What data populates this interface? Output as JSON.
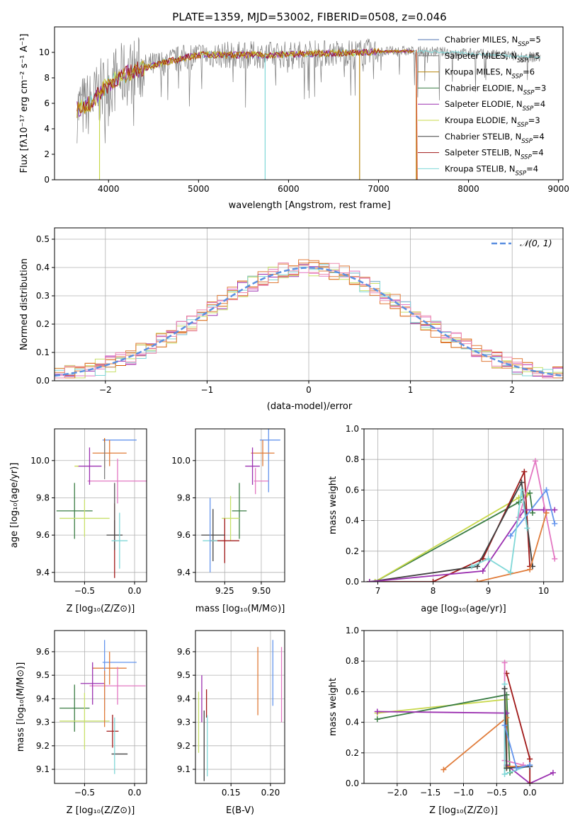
{
  "figure": {
    "title": "PLATE=1359, MJD=53002, FIBERID=0508, z=0.046"
  },
  "colors": {
    "CM": "#4c72b0",
    "SM": "#7f7f7f",
    "KM": "#b8860b",
    "CE": "#3a7d44",
    "SE": "#9b30b0",
    "KE": "#c8d84a",
    "CS": "#404040",
    "SS": "#a01818",
    "KS": "#7fd7d7",
    "gauss": "#5b8fe0"
  },
  "models": [
    {
      "id": "CM",
      "label": "Chabrier MILES, N",
      "n": "5"
    },
    {
      "id": "SM",
      "label": "Salpeter MILES, N",
      "n": "5"
    },
    {
      "id": "KM",
      "label": "Kroupa MILES, N",
      "n": "6"
    },
    {
      "id": "CE",
      "label": "Chabrier ELODIE, N",
      "n": "3"
    },
    {
      "id": "SE",
      "label": "Salpeter ELODIE, N",
      "n": "4"
    },
    {
      "id": "KE",
      "label": "Kroupa ELODIE, N",
      "n": "3"
    },
    {
      "id": "CS",
      "label": "Chabrier STELIB, N",
      "n": "4"
    },
    {
      "id": "SS",
      "label": "Salpeter STELIB, N",
      "n": "4"
    },
    {
      "id": "KS",
      "label": "Kroupa STELIB, N",
      "n": "4"
    }
  ],
  "chart_data": [
    {
      "id": "spectrum",
      "type": "line",
      "xlabel": "wavelength [Angstrom, rest frame]",
      "ylabel": "Flux [fλ10⁻¹⁷ erg cm⁻² s⁻¹ A⁻¹]",
      "xlim": [
        3400,
        9050
      ],
      "ylim": [
        0,
        12
      ],
      "xticks": [
        4000,
        5000,
        6000,
        7000,
        8000,
        9000
      ],
      "yticks": [
        0,
        2,
        4,
        6,
        8,
        10
      ],
      "grid": false,
      "legend": "top-right",
      "x_range_data": [
        3650,
        8800
      ],
      "continuum": [
        [
          3650,
          5.5
        ],
        [
          3800,
          6.0
        ],
        [
          3950,
          7.2
        ],
        [
          4100,
          8.0
        ],
        [
          4300,
          8.6
        ],
        [
          4500,
          9.0
        ],
        [
          4800,
          9.5
        ],
        [
          5000,
          9.8
        ],
        [
          5300,
          9.8
        ],
        [
          5800,
          9.8
        ],
        [
          6300,
          9.9
        ],
        [
          6800,
          10.0
        ],
        [
          7300,
          10.1
        ],
        [
          7800,
          10.0
        ],
        [
          8300,
          9.8
        ],
        [
          8800,
          9.6
        ]
      ],
      "series_ranges": [
        {
          "id": "SM",
          "range": [
            3650,
            8800
          ]
        },
        {
          "id": "KS",
          "range": [
            3650,
            8800
          ]
        },
        {
          "id": "KE",
          "range": [
            3650,
            7400
          ]
        },
        {
          "id": "SE",
          "range": [
            3650,
            7400
          ]
        },
        {
          "id": "SS",
          "range": [
            3650,
            7400
          ]
        },
        {
          "id": "KM",
          "range": [
            3650,
            7400
          ]
        }
      ],
      "drops": [
        {
          "x": 3900,
          "color_id": "KE"
        },
        {
          "x": 5740,
          "color_id": "KS"
        },
        {
          "x": 6790,
          "color_id": "KM"
        },
        {
          "x": 7420,
          "color_id": "KM"
        }
      ]
    },
    {
      "id": "residuals",
      "type": "line",
      "xlabel": "(data-model)/error",
      "ylabel": "Normed distribution",
      "xlim": [
        -2.5,
        2.5
      ],
      "ylim": [
        0,
        0.54
      ],
      "xticks": [
        -2,
        -1,
        0,
        1,
        2
      ],
      "yticks": [
        0.0,
        0.1,
        0.2,
        0.3,
        0.4,
        0.5
      ],
      "grid": true,
      "legend": "top-right",
      "legend_label": "𝒩(0, 1)",
      "bin_width": 0.1,
      "step_colors": [
        "#e07b39",
        "#d55e00",
        "#9b30b0",
        "#e377c2",
        "#c8e06a",
        "#7fd7d7",
        "#e07b39",
        "#ec8bb0"
      ]
    },
    {
      "id": "age_vs_Z",
      "type": "scatter",
      "xlabel": "Z [log₁₀(Z/Z⊙)]",
      "ylabel": "age  [log₁₀(age/yr)]",
      "xlim": [
        -0.8,
        0.12
      ],
      "ylim": [
        9.35,
        10.17
      ],
      "xticks": [
        -0.5,
        0.0
      ],
      "yticks": [
        9.4,
        9.6,
        9.8,
        10.0
      ],
      "grid": true,
      "points": [
        {
          "c": "#6495ed",
          "x": -0.15,
          "xerr": 0.17,
          "y": 10.11,
          "yerr": 0.0
        },
        {
          "c": "#e07b39",
          "x": -0.25,
          "xerr": 0.17,
          "y": 10.04,
          "yerr": 0.07
        },
        {
          "c": "#e377c2",
          "x": -0.17,
          "xerr": 0.3,
          "y": 9.89,
          "yerr": 0.12
        },
        {
          "c": "#9b30b0",
          "x": -0.45,
          "xerr": 0.12,
          "y": 9.97,
          "yerr": 0.1
        },
        {
          "c": "#c8d84a",
          "x": -0.58,
          "xerr": 0.02,
          "y": 9.97,
          "yerr": 0.0
        },
        {
          "c": "#d55e00",
          "x": -0.3,
          "xerr": 0.0,
          "y": 10.04,
          "yerr": 0.08
        },
        {
          "c": "#3a7d44",
          "x": -0.6,
          "xerr": 0.18,
          "y": 9.73,
          "yerr": 0.15
        },
        {
          "c": "#c8e06a",
          "x": -0.5,
          "xerr": 0.25,
          "y": 9.69,
          "yerr": 0.1
        },
        {
          "c": "#7f7f7f",
          "x": -0.3,
          "xerr": 0.0,
          "y": 10.0,
          "yerr": 0.1
        },
        {
          "c": "#a01818",
          "x": -0.2,
          "xerr": 0.0,
          "y": 9.57,
          "yerr": 0.2
        },
        {
          "c": "#404040",
          "x": -0.2,
          "xerr": 0.08,
          "y": 9.6,
          "yerr": 0.08
        },
        {
          "c": "#7fd7d7",
          "x": -0.15,
          "xerr": 0.08,
          "y": 9.57,
          "yerr": 0.15
        },
        {
          "c": "#555555",
          "x": -0.2,
          "xerr": 0.0,
          "y": 9.78,
          "yerr": 0.1
        }
      ]
    },
    {
      "id": "age_vs_mass",
      "type": "scatter",
      "xlabel": "mass [log₁₀(M/M⊙)]",
      "ylabel": "",
      "xlim": [
        9.05,
        9.66
      ],
      "ylim": [
        9.35,
        10.17
      ],
      "xticks": [
        9.25,
        9.5
      ],
      "yticks": [
        9.4,
        9.6,
        9.8,
        10.0
      ],
      "grid": true,
      "points": [
        {
          "c": "#6495ed",
          "x": 9.56,
          "xerr": 0.07,
          "y": 10.11,
          "yerr": 0.0
        },
        {
          "c": "#6495ed",
          "x": 9.55,
          "xerr": 0.0,
          "y": 10.0,
          "yerr": 0.17
        },
        {
          "c": "#e07b39",
          "x": 9.51,
          "xerr": 0.08,
          "y": 10.04,
          "yerr": 0.07
        },
        {
          "c": "#e377c2",
          "x": 9.46,
          "xerr": 0.0,
          "y": 9.89,
          "yerr": 0.07
        },
        {
          "c": "#e377c2",
          "x": 9.5,
          "xerr": 0.05,
          "y": 9.89,
          "yerr": 0.0
        },
        {
          "c": "#9b30b0",
          "x": 9.44,
          "xerr": 0.05,
          "y": 9.97,
          "yerr": 0.1
        },
        {
          "c": "#3a7d44",
          "x": 9.35,
          "xerr": 0.05,
          "y": 9.73,
          "yerr": 0.15
        },
        {
          "c": "#c8e06a",
          "x": 9.29,
          "xerr": 0.06,
          "y": 9.69,
          "yerr": 0.12
        },
        {
          "c": "#a01818",
          "x": 9.25,
          "xerr": 0.1,
          "y": 9.57,
          "yerr": 0.12
        },
        {
          "c": "#404040",
          "x": 9.17,
          "xerr": 0.08,
          "y": 9.6,
          "yerr": 0.14
        },
        {
          "c": "#7fd7d7",
          "x": 9.15,
          "xerr": 0.05,
          "y": 9.57,
          "yerr": 0.0
        },
        {
          "c": "#6495ed",
          "x": 9.15,
          "xerr": 0.0,
          "y": 9.6,
          "yerr": 0.2
        }
      ]
    },
    {
      "id": "mass_weight_vs_age",
      "type": "line",
      "xlabel": "age  [log₁₀(age/yr)]",
      "ylabel": "mass weight",
      "xlim": [
        6.75,
        10.35
      ],
      "ylim": [
        0,
        1.0
      ],
      "xticks": [
        7,
        8,
        9,
        10
      ],
      "yticks": [
        0.0,
        0.2,
        0.4,
        0.6,
        0.8,
        1.0
      ],
      "grid": true,
      "series": [
        {
          "c": "#3a7d44",
          "pts": [
            [
              6.95,
              0.0
            ],
            [
              9.55,
              0.52
            ],
            [
              9.75,
              0.58
            ],
            [
              9.8,
              0.45
            ]
          ]
        },
        {
          "c": "#c8d84a",
          "pts": [
            [
              6.95,
              0.0
            ],
            [
              9.55,
              0.55
            ],
            [
              9.7,
              0.57
            ]
          ]
        },
        {
          "c": "#a01818",
          "pts": [
            [
              6.85,
              0.0
            ],
            [
              8.0,
              0.0
            ],
            [
              8.9,
              0.15
            ],
            [
              9.65,
              0.72
            ],
            [
              9.75,
              0.1
            ]
          ]
        },
        {
          "c": "#404040",
          "pts": [
            [
              6.85,
              0.0
            ],
            [
              8.8,
              0.1
            ],
            [
              9.6,
              0.65
            ],
            [
              9.8,
              0.1
            ]
          ]
        },
        {
          "c": "#9b30b0",
          "pts": [
            [
              6.85,
              0.0
            ],
            [
              8.9,
              0.07
            ],
            [
              9.65,
              0.47
            ],
            [
              10.0,
              0.47
            ],
            [
              10.2,
              0.47
            ]
          ]
        },
        {
          "c": "#e377c2",
          "pts": [
            [
              9.55,
              0.42
            ],
            [
              9.85,
              0.79
            ],
            [
              10.2,
              0.15
            ]
          ]
        },
        {
          "c": "#6495ed",
          "pts": [
            [
              9.4,
              0.3
            ],
            [
              10.05,
              0.6
            ],
            [
              10.2,
              0.38
            ]
          ]
        },
        {
          "c": "#e07b39",
          "pts": [
            [
              8.8,
              0.0
            ],
            [
              9.75,
              0.08
            ],
            [
              10.05,
              0.45
            ]
          ]
        },
        {
          "c": "#7fd7d7",
          "pts": [
            [
              8.7,
              0.1
            ],
            [
              9.0,
              0.15
            ],
            [
              9.4,
              0.06
            ],
            [
              9.6,
              0.6
            ],
            [
              9.7,
              0.35
            ]
          ]
        }
      ]
    },
    {
      "id": "mass_vs_Z",
      "type": "scatter",
      "xlabel": "Z [log₁₀(Z/Z⊙)]",
      "ylabel": "mass [log₁₀(M/M⊙)]",
      "xlim": [
        -0.8,
        0.12
      ],
      "ylim": [
        9.04,
        9.69
      ],
      "xticks": [
        -0.5,
        0.0
      ],
      "yticks": [
        9.1,
        9.2,
        9.3,
        9.4,
        9.5,
        9.6
      ],
      "grid": true,
      "points": [
        {
          "c": "#6495ed",
          "x": -0.15,
          "xerr": 0.17,
          "y": 9.555,
          "yerr": 0.0
        },
        {
          "c": "#e07b39",
          "x": -0.25,
          "xerr": 0.17,
          "y": 9.53,
          "yerr": 0.07
        },
        {
          "c": "#e377c2",
          "x": -0.17,
          "xerr": 0.28,
          "y": 9.455,
          "yerr": 0.08
        },
        {
          "c": "#9b30b0",
          "x": -0.42,
          "xerr": 0.12,
          "y": 9.465,
          "yerr": 0.09
        },
        {
          "c": "#3a7d44",
          "x": -0.6,
          "xerr": 0.15,
          "y": 9.36,
          "yerr": 0.1
        },
        {
          "c": "#c8e06a",
          "x": -0.5,
          "xerr": 0.25,
          "y": 9.305,
          "yerr": 0.12
        },
        {
          "c": "#a01818",
          "x": -0.22,
          "xerr": 0.06,
          "y": 9.262,
          "yerr": 0.07
        },
        {
          "c": "#404040",
          "x": -0.15,
          "xerr": 0.08,
          "y": 9.165,
          "yerr": 0.0
        },
        {
          "c": "#7fd7d7",
          "x": -0.12,
          "xerr": 0.0,
          "y": 9.15,
          "yerr": 0.0
        },
        {
          "c": "#7fd7d7",
          "x": -0.2,
          "xerr": 0.0,
          "y": 9.2,
          "yerr": 0.12
        },
        {
          "c": "#6495ed",
          "x": -0.3,
          "xerr": 0.0,
          "y": 9.5,
          "yerr": 0.15
        },
        {
          "c": "#e07b39",
          "x": -0.3,
          "xerr": 0.0,
          "y": 9.4,
          "yerr": 0.12
        }
      ]
    },
    {
      "id": "mass_vs_EBV",
      "type": "scatter",
      "xlabel": "E(B-V)",
      "ylabel": "",
      "xlim": [
        0.105,
        0.218
      ],
      "ylim": [
        9.04,
        9.69
      ],
      "xticks": [
        0.15,
        0.2
      ],
      "yticks": [
        9.1,
        9.2,
        9.3,
        9.4,
        9.5,
        9.6
      ],
      "grid": true,
      "points": [
        {
          "c": "#c8e06a",
          "x": 0.109,
          "xerr": 0.0,
          "y": 9.3,
          "yerr": 0.13
        },
        {
          "c": "#9b30b0",
          "x": 0.113,
          "xerr": 0.0,
          "y": 9.4,
          "yerr": 0.1
        },
        {
          "c": "#404040",
          "x": 0.116,
          "xerr": 0.0,
          "y": 9.2,
          "yerr": 0.15
        },
        {
          "c": "#a01818",
          "x": 0.119,
          "xerr": 0.0,
          "y": 9.38,
          "yerr": 0.06
        },
        {
          "c": "#7fd7d7",
          "x": 0.12,
          "xerr": 0.0,
          "y": 9.2,
          "yerr": 0.13
        },
        {
          "c": "#e07b39",
          "x": 0.184,
          "xerr": 0.0,
          "y": 9.475,
          "yerr": 0.145
        },
        {
          "c": "#6495ed",
          "x": 0.203,
          "xerr": 0.0,
          "y": 9.51,
          "yerr": 0.14
        },
        {
          "c": "#e377c2",
          "x": 0.214,
          "xerr": 0.0,
          "y": 9.46,
          "yerr": 0.16
        }
      ]
    },
    {
      "id": "mass_weight_vs_Z",
      "type": "line",
      "xlabel": "Z [log₁₀(Z/Z⊙)]",
      "ylabel": "mass weight",
      "xlim": [
        -2.5,
        0.5
      ],
      "ylim": [
        0,
        1.0
      ],
      "xticks": [
        -2.0,
        -1.5,
        -1.0,
        -0.5,
        0.0
      ],
      "yticks": [
        0.0,
        0.2,
        0.4,
        0.6,
        0.8,
        1.0
      ],
      "grid": true,
      "series": [
        {
          "c": "#c8d84a",
          "pts": [
            [
              -2.3,
              0.46
            ],
            [
              -0.35,
              0.55
            ],
            [
              -0.35,
              0.1
            ]
          ]
        },
        {
          "c": "#3a7d44",
          "pts": [
            [
              -2.3,
              0.42
            ],
            [
              -0.35,
              0.58
            ],
            [
              -0.3,
              0.07
            ]
          ]
        },
        {
          "c": "#9b30b0",
          "pts": [
            [
              -2.3,
              0.47
            ],
            [
              -0.35,
              0.46
            ],
            [
              -0.35,
              0.12
            ],
            [
              0.0,
              0.0
            ],
            [
              0.35,
              0.07
            ]
          ]
        },
        {
          "c": "#e07b39",
          "pts": [
            [
              -1.3,
              0.09
            ],
            [
              -0.35,
              0.43
            ],
            [
              -0.35,
              0.11
            ],
            [
              0.0,
              0.11
            ]
          ]
        },
        {
          "c": "#a01818",
          "pts": [
            [
              -0.35,
              0.72
            ],
            [
              0.0,
              0.16
            ],
            [
              0.0,
              0.0
            ]
          ]
        },
        {
          "c": "#e377c2",
          "pts": [
            [
              -0.38,
              0.79
            ],
            [
              -0.38,
              0.15
            ],
            [
              -0.1,
              0.12
            ]
          ]
        },
        {
          "c": "#7fd7d7",
          "pts": [
            [
              -0.38,
              0.65
            ],
            [
              -0.38,
              0.06
            ],
            [
              0.0,
              0.12
            ]
          ]
        },
        {
          "c": "#404040",
          "pts": [
            [
              -0.38,
              0.62
            ],
            [
              -0.35,
              0.1
            ],
            [
              0.0,
              0.11
            ]
          ]
        },
        {
          "c": "#6495ed",
          "pts": [
            [
              -0.38,
              0.38
            ],
            [
              -0.2,
              0.1
            ],
            [
              0.0,
              0.12
            ]
          ]
        }
      ]
    }
  ]
}
